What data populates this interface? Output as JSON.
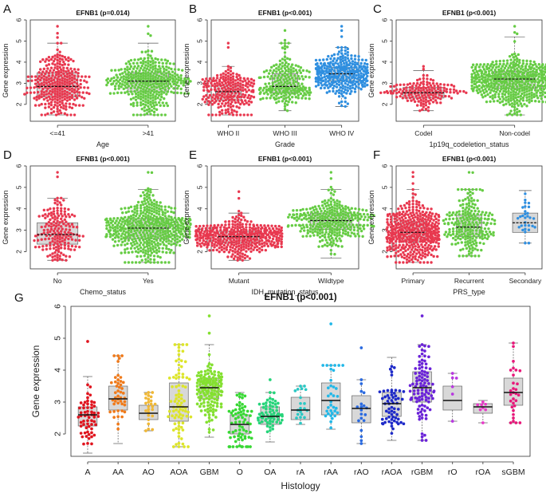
{
  "figure": {
    "domain": "Chart",
    "axis_tick_values": [
      "2",
      "3",
      "4",
      "5",
      "6"
    ]
  },
  "chart_data": [
    {
      "id": "A",
      "panel_letter": "A",
      "type": "boxplot-beeswarm",
      "title": "EFNB1 (p=0.014)",
      "xlabel": "Age",
      "ylabel": "Gene expression",
      "ylim": [
        1.2,
        6.0
      ],
      "groups": [
        {
          "name": "<=41",
          "color": "#e8384f",
          "n": 300,
          "min": 1.5,
          "q1": 2.35,
          "median": 2.85,
          "q3": 3.5,
          "max": 4.9,
          "outlier_max": 5.7
        },
        {
          "name": ">41",
          "color": "#66cc44",
          "n": 380,
          "min": 1.5,
          "q1": 2.6,
          "median": 3.1,
          "q3": 3.5,
          "max": 4.9,
          "outlier_max": 5.7
        }
      ]
    },
    {
      "id": "B",
      "panel_letter": "B",
      "type": "boxplot-beeswarm",
      "title": "EFNB1 (p<0.001)",
      "xlabel": "Grade",
      "ylabel": "Gene expression",
      "ylim": [
        1.2,
        6.0
      ],
      "groups": [
        {
          "name": "WHO II",
          "color": "#e8384f",
          "n": 230,
          "min": 1.5,
          "q1": 2.2,
          "median": 2.6,
          "q3": 2.9,
          "max": 3.8,
          "outlier_max": 4.9
        },
        {
          "name": "WHO III",
          "color": "#66cc44",
          "n": 230,
          "min": 1.7,
          "q1": 2.55,
          "median": 2.85,
          "q3": 3.45,
          "max": 4.9,
          "outlier_max": 5.5
        },
        {
          "name": "WHO IV",
          "color": "#2f8fe0",
          "n": 340,
          "min": 1.9,
          "q1": 3.1,
          "median": 3.45,
          "q3": 3.75,
          "max": 4.7,
          "outlier_max": 5.7
        }
      ]
    },
    {
      "id": "C",
      "panel_letter": "C",
      "type": "boxplot-beeswarm",
      "title": "EFNB1 (p<0.001)",
      "xlabel": "1p19q_codeletion_status",
      "ylabel": "Gene expression",
      "ylim": [
        1.2,
        6.0
      ],
      "groups": [
        {
          "name": "Codel",
          "color": "#e8384f",
          "n": 160,
          "min": 1.7,
          "q1": 2.3,
          "median": 2.55,
          "q3": 2.8,
          "max": 3.6,
          "outlier_max": 3.8
        },
        {
          "name": "Non-codel",
          "color": "#66cc44",
          "n": 560,
          "min": 1.5,
          "q1": 2.75,
          "median": 3.2,
          "q3": 3.55,
          "max": 5.2,
          "outlier_max": 5.7
        }
      ]
    },
    {
      "id": "D",
      "panel_letter": "D",
      "type": "boxplot-beeswarm",
      "title": "EFNB1 (p<0.001)",
      "xlabel": "Chemo_status",
      "ylabel": "Gene expression",
      "ylim": [
        1.2,
        6.0
      ],
      "groups": [
        {
          "name": "No",
          "color": "#e8384f",
          "n": 180,
          "min": 1.6,
          "q1": 2.35,
          "median": 2.8,
          "q3": 3.35,
          "max": 4.5,
          "outlier_max": 5.7
        },
        {
          "name": "Yes",
          "color": "#66cc44",
          "n": 520,
          "min": 1.5,
          "q1": 2.6,
          "median": 3.1,
          "q3": 3.55,
          "max": 4.9,
          "outlier_max": 5.7
        }
      ]
    },
    {
      "id": "E",
      "panel_letter": "E",
      "type": "boxplot-beeswarm",
      "title": "EFNB1 (p<0.001)",
      "xlabel": "IDH_mutation_status",
      "ylabel": "Gene expression",
      "ylim": [
        1.2,
        6.0
      ],
      "groups": [
        {
          "name": "Mutant",
          "color": "#e8384f",
          "n": 420,
          "min": 1.6,
          "q1": 2.4,
          "median": 2.7,
          "q3": 2.95,
          "max": 3.8,
          "outlier_max": 4.8
        },
        {
          "name": "Wildtype",
          "color": "#66cc44",
          "n": 320,
          "min": 1.7,
          "q1": 3.05,
          "median": 3.45,
          "q3": 3.8,
          "max": 4.9,
          "outlier_max": 5.7
        }
      ]
    },
    {
      "id": "F",
      "panel_letter": "F",
      "type": "boxplot-beeswarm",
      "title": "EFNB1 (p<0.001)",
      "xlabel": "PRS_type",
      "ylabel": "Gene expression",
      "ylim": [
        1.2,
        6.0
      ],
      "groups": [
        {
          "name": "Primary",
          "color": "#e8384f",
          "n": 460,
          "min": 1.5,
          "q1": 2.45,
          "median": 2.9,
          "q3": 3.4,
          "max": 4.9,
          "outlier_max": 5.7
        },
        {
          "name": "Recurrent",
          "color": "#66cc44",
          "n": 230,
          "min": 1.8,
          "q1": 2.7,
          "median": 3.15,
          "q3": 3.7,
          "max": 4.9,
          "outlier_max": 5.7
        },
        {
          "name": "Secondary",
          "color": "#2f8fe0",
          "n": 30,
          "min": 2.4,
          "q1": 2.9,
          "median": 3.35,
          "q3": 3.8,
          "max": 4.85,
          "outlier_max": 4.85
        }
      ]
    },
    {
      "id": "G",
      "panel_letter": "G",
      "type": "boxplot-beeswarm",
      "title": "EFNB1 (p<0.001)",
      "xlabel": "Histology",
      "ylabel": "Gene expression",
      "ylim": [
        1.3,
        6.0
      ],
      "groups": [
        {
          "name": "A",
          "color": "#e0141e",
          "n": 60,
          "min": 1.4,
          "q1": 2.25,
          "median": 2.6,
          "q3": 2.85,
          "max": 3.8,
          "outlier_max": 4.9
        },
        {
          "name": "AA",
          "color": "#f07a1a",
          "n": 45,
          "min": 1.7,
          "q1": 2.75,
          "median": 3.1,
          "q3": 3.5,
          "max": 4.45,
          "outlier_max": 4.45
        },
        {
          "name": "AO",
          "color": "#f0b836",
          "n": 25,
          "min": 2.1,
          "q1": 2.45,
          "median": 2.65,
          "q3": 2.9,
          "max": 3.3,
          "outlier_max": 3.3
        },
        {
          "name": "AOA",
          "color": "#dde52a",
          "n": 85,
          "min": 1.6,
          "q1": 2.4,
          "median": 2.85,
          "q3": 3.6,
          "max": 4.8,
          "outlier_max": 4.8
        },
        {
          "name": "GBM",
          "color": "#84e030",
          "n": 160,
          "min": 1.9,
          "q1": 3.1,
          "median": 3.45,
          "q3": 3.75,
          "max": 4.8,
          "outlier_max": 5.7
        },
        {
          "name": "O",
          "color": "#38d834",
          "n": 70,
          "min": 1.6,
          "q1": 2.0,
          "median": 2.3,
          "q3": 2.6,
          "max": 3.3,
          "outlier_max": 3.3
        },
        {
          "name": "OA",
          "color": "#26d47a",
          "n": 70,
          "min": 1.75,
          "q1": 2.3,
          "median": 2.55,
          "q3": 2.85,
          "max": 3.3,
          "outlier_max": 3.7
        },
        {
          "name": "rA",
          "color": "#2bc8c4",
          "n": 20,
          "min": 2.3,
          "q1": 2.45,
          "median": 2.75,
          "q3": 3.15,
          "max": 3.5,
          "outlier_max": 3.5
        },
        {
          "name": "rAA",
          "color": "#22b8e8",
          "n": 35,
          "min": 2.15,
          "q1": 2.6,
          "median": 3.05,
          "q3": 3.6,
          "max": 4.15,
          "outlier_max": 5.45
        },
        {
          "name": "rAO",
          "color": "#2a6ae0",
          "n": 20,
          "min": 1.7,
          "q1": 2.35,
          "median": 2.8,
          "q3": 3.2,
          "max": 3.7,
          "outlier_max": 4.7
        },
        {
          "name": "rAOA",
          "color": "#1e2ac8",
          "n": 60,
          "min": 1.8,
          "q1": 2.55,
          "median": 2.95,
          "q3": 3.3,
          "max": 4.4,
          "outlier_max": 4.4
        },
        {
          "name": "rGBM",
          "color": "#6a22d8",
          "n": 100,
          "min": 1.8,
          "q1": 3.0,
          "median": 3.45,
          "q3": 3.95,
          "max": 4.8,
          "outlier_max": 5.7
        },
        {
          "name": "rO",
          "color": "#b838e0",
          "n": 6,
          "min": 2.4,
          "q1": 2.75,
          "median": 3.05,
          "q3": 3.5,
          "max": 3.9,
          "outlier_max": 3.9
        },
        {
          "name": "rOA",
          "color": "#e83ac8",
          "n": 8,
          "min": 2.35,
          "q1": 2.65,
          "median": 2.85,
          "q3": 2.95,
          "max": 3.05,
          "outlier_max": 3.05
        },
        {
          "name": "sGBM",
          "color": "#e8187a",
          "n": 30,
          "min": 2.35,
          "q1": 2.9,
          "median": 3.3,
          "q3": 3.75,
          "max": 4.85,
          "outlier_max": 4.85
        }
      ]
    }
  ]
}
